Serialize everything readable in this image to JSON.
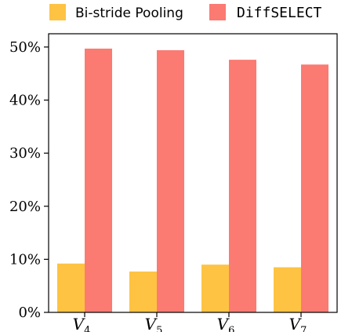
{
  "chart_data": {
    "type": "bar",
    "title": "",
    "xlabel": "",
    "ylabel": "",
    "categories": [
      {
        "main": "V",
        "sub": "4"
      },
      {
        "main": "V",
        "sub": "5"
      },
      {
        "main": "V",
        "sub": "6"
      },
      {
        "main": "V",
        "sub": "7"
      }
    ],
    "series": [
      {
        "name": "Bi-stride Pooling",
        "color": "#FEC343",
        "values": [
          9.2,
          7.7,
          9.0,
          8.5
        ]
      },
      {
        "name": "DiffSELECT",
        "color": "#FB7A72",
        "values": [
          49.7,
          49.4,
          47.6,
          46.7
        ]
      }
    ],
    "ylim": [
      0,
      52.5
    ],
    "yticks": [
      0,
      10,
      20,
      30,
      40,
      50
    ],
    "ytick_format": "{v}%",
    "legend_placement": "top",
    "grid": false
  }
}
